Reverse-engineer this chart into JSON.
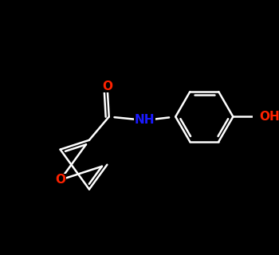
{
  "background_color": "#000000",
  "bond_color": "#ffffff",
  "bond_width": 1.8,
  "atom_colors": {
    "O": "#ff2200",
    "N": "#1a1aff",
    "C": "#ffffff",
    "H": "#ffffff"
  },
  "font_size": 11,
  "fig_width": 3.5,
  "fig_height": 3.2,
  "dpi": 100
}
